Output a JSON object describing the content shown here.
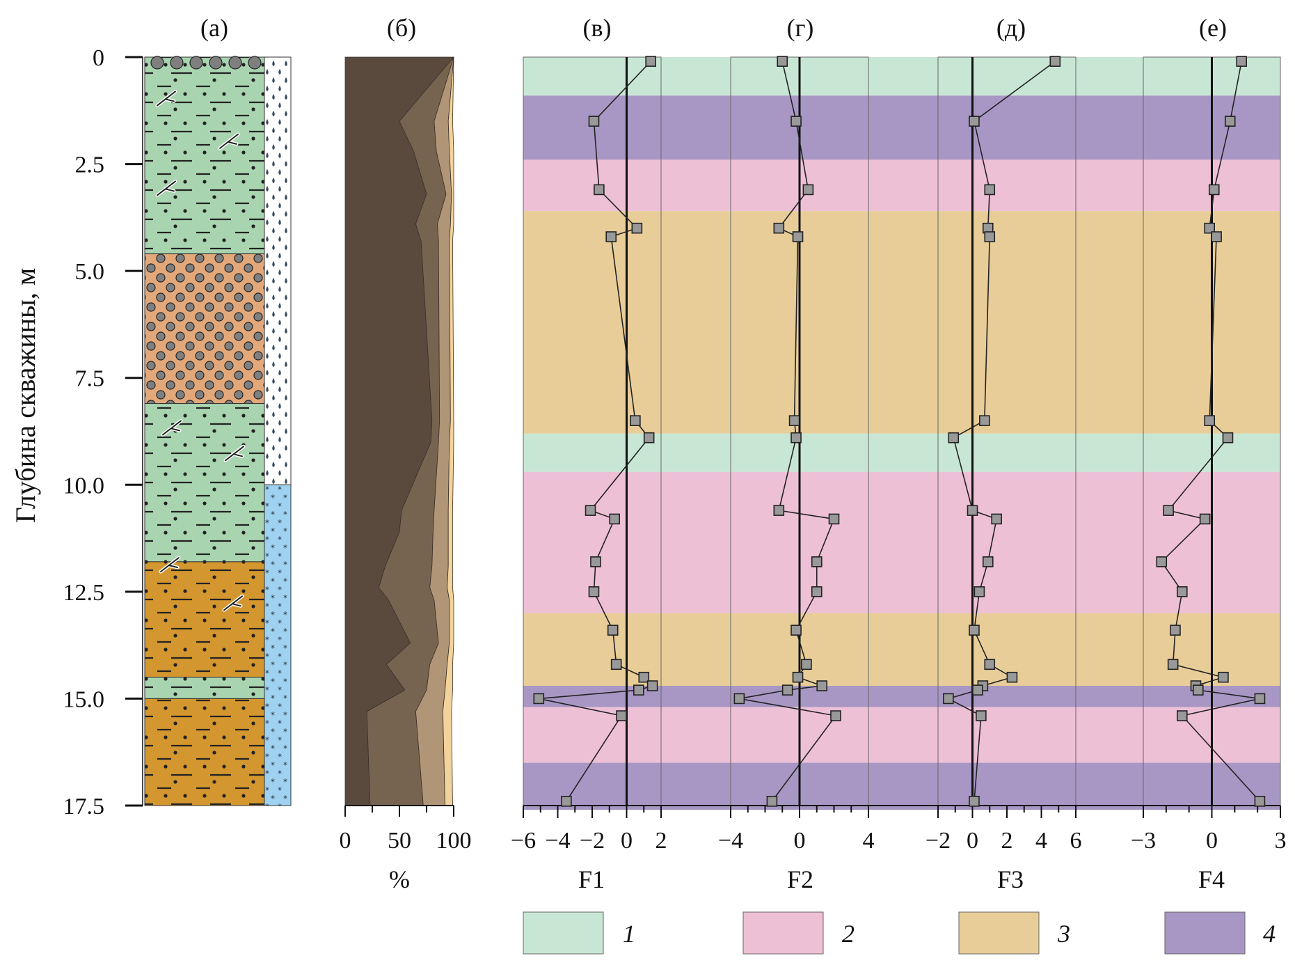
{
  "ylabel": "Глубина скважины, м",
  "depth_ticks": [
    "0",
    "2.5",
    "5.0",
    "7.5",
    "10.0",
    "12.5",
    "15.0",
    "17.5"
  ],
  "panel_letters": [
    "(а)",
    "(б)",
    "(в)",
    "(г)",
    "(д)",
    "(е)"
  ],
  "percent_ticks": [
    "0",
    "50",
    "100"
  ],
  "percent_label": "%",
  "legend": [
    {
      "label": "1",
      "color": "#c8e6d4"
    },
    {
      "label": "2",
      "color": "#eec0d6"
    },
    {
      "label": "3",
      "color": "#e8cd98"
    },
    {
      "label": "4",
      "color": "#a897c4"
    }
  ],
  "colors": {
    "lithology_green": "#a8d5b0",
    "lithology_orange": "#e3a87a",
    "lithology_ochre": "#d4962e",
    "water_blue": "#9fd2f0",
    "grain_dark": "#5a4a3e",
    "grain_mid": "#766451",
    "grain_light": "#b09677",
    "grain_pale": "#f3d39c",
    "marker": "#999999"
  },
  "chart_data": [
    {
      "type": "table",
      "name": "lithology_column",
      "panel": "(а)",
      "layers_depth_m": [
        {
          "top": 0,
          "bottom": 4.6,
          "lithology": "green"
        },
        {
          "top": 4.6,
          "bottom": 8.1,
          "lithology": "orange"
        },
        {
          "top": 8.1,
          "bottom": 11.8,
          "lithology": "green"
        },
        {
          "top": 11.8,
          "bottom": 14.5,
          "lithology": "ochre"
        },
        {
          "top": 14.5,
          "bottom": 15.0,
          "lithology": "green"
        },
        {
          "top": 15.0,
          "bottom": 17.5,
          "lithology": "ochre"
        }
      ],
      "water_column_depth_m": [
        {
          "top": 0,
          "bottom": 10.0,
          "type": "droplets"
        },
        {
          "top": 10.0,
          "bottom": 17.5,
          "type": "stars"
        }
      ]
    },
    {
      "type": "area",
      "name": "grain_composition",
      "panel": "(б)",
      "xlim": [
        0,
        100
      ],
      "ylim": [
        0,
        17.5
      ],
      "depth": [
        0,
        1.5,
        2.2,
        3.2,
        3.9,
        4.3,
        8.5,
        9.0,
        10.6,
        11.1,
        11.9,
        12.4,
        12.7,
        13.7,
        14.2,
        14.8,
        15.3,
        17.5
      ],
      "boundaries": [
        [
          100,
          50,
          63,
          75,
          65,
          70,
          80,
          79,
          52,
          50,
          37,
          31,
          40,
          60,
          38,
          55,
          20,
          23
        ],
        [
          100,
          82,
          84,
          93,
          85,
          86,
          87,
          86,
          82,
          81,
          80,
          78,
          82,
          86,
          78,
          75,
          65,
          72
        ],
        [
          100,
          95,
          96,
          98,
          97,
          96,
          97,
          96,
          95,
          95,
          95,
          94,
          96,
          96,
          94,
          92,
          90,
          92
        ],
        [
          100,
          99,
          100,
          100,
          100,
          99,
          100,
          100,
          99,
          99,
          99,
          99,
          100,
          100,
          99,
          99,
          98,
          99
        ]
      ]
    },
    {
      "type": "scatter",
      "name": "factor_scores",
      "depth": [
        0.1,
        1.5,
        3.1,
        4.0,
        4.2,
        8.5,
        8.9,
        10.6,
        10.8,
        11.8,
        12.5,
        13.4,
        14.2,
        14.5,
        14.7,
        14.8,
        15.0,
        15.4,
        17.4
      ],
      "zones": [
        {
          "top": 0,
          "bottom": 0.9,
          "zone": 1
        },
        {
          "top": 0.9,
          "bottom": 2.4,
          "zone": 4
        },
        {
          "top": 2.4,
          "bottom": 3.6,
          "zone": 2
        },
        {
          "top": 3.6,
          "bottom": 8.8,
          "zone": 3
        },
        {
          "top": 8.8,
          "bottom": 9.7,
          "zone": 1
        },
        {
          "top": 9.7,
          "bottom": 13.0,
          "zone": 2
        },
        {
          "top": 13.0,
          "bottom": 14.7,
          "zone": 3
        },
        {
          "top": 14.7,
          "bottom": 15.2,
          "zone": 4
        },
        {
          "top": 15.2,
          "bottom": 16.5,
          "zone": 2
        },
        {
          "top": 16.5,
          "bottom": 17.6,
          "zone": 4
        }
      ],
      "series": [
        {
          "name": "F1",
          "panel": "(в)",
          "xlim": [
            -6,
            2
          ],
          "xticks": [
            "−6",
            "−4",
            "−2",
            "0",
            "2"
          ],
          "values": [
            1.4,
            -1.9,
            -1.6,
            0.6,
            -0.9,
            0.5,
            1.3,
            -2.1,
            -0.7,
            -1.8,
            -1.9,
            -0.8,
            -0.6,
            1.0,
            1.5,
            0.7,
            -5.1,
            -0.3,
            -3.5
          ]
        },
        {
          "name": "F2",
          "panel": "(г)",
          "xlim": [
            -4,
            4
          ],
          "xticks": [
            "−4",
            "0",
            "4"
          ],
          "values": [
            -1.0,
            -0.2,
            0.5,
            -1.2,
            -0.1,
            -0.3,
            -0.2,
            -1.2,
            2.0,
            1.0,
            1.0,
            -0.2,
            0.4,
            -0.1,
            1.3,
            -0.7,
            -3.5,
            2.1,
            -1.6
          ]
        },
        {
          "name": "F3",
          "panel": "(д)",
          "xlim": [
            -2,
            6
          ],
          "xticks": [
            "−2",
            "0",
            "2",
            "4",
            "6"
          ],
          "values": [
            4.8,
            0.1,
            1.0,
            0.9,
            1.0,
            0.7,
            -1.1,
            0.0,
            1.4,
            0.9,
            0.4,
            0.1,
            1.0,
            2.3,
            0.6,
            0.3,
            -1.4,
            0.5,
            0.1
          ]
        },
        {
          "name": "F4",
          "panel": "(е)",
          "xlim": [
            -3,
            3
          ],
          "xticks": [
            "−3",
            "0",
            "3"
          ],
          "values": [
            1.3,
            0.8,
            0.1,
            -0.1,
            0.2,
            -0.1,
            0.7,
            -1.9,
            -0.3,
            -2.2,
            -1.3,
            -1.6,
            -1.7,
            0.5,
            -0.7,
            -0.6,
            2.1,
            -1.3,
            2.1
          ]
        }
      ]
    }
  ]
}
